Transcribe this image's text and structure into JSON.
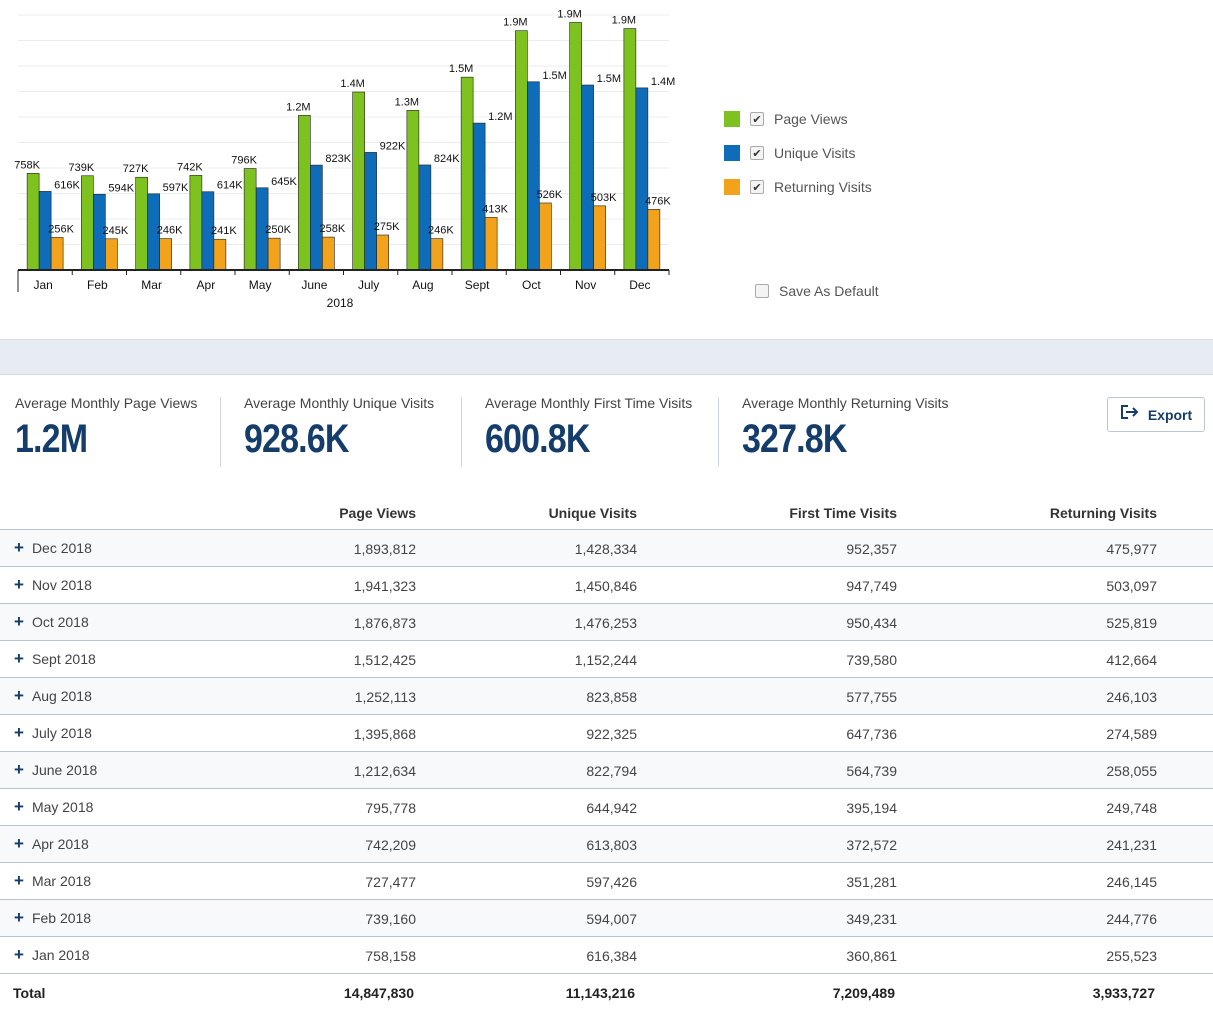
{
  "chart_data": {
    "type": "bar",
    "categories": [
      "Jan",
      "Feb",
      "Mar",
      "Apr",
      "May",
      "June",
      "July",
      "Aug",
      "Sept",
      "Oct",
      "Nov",
      "Dec"
    ],
    "xlabel": "2018",
    "series": [
      {
        "name": "Page Views",
        "color": "#7dc21e",
        "values": [
          758158,
          739160,
          727477,
          742209,
          795778,
          1212634,
          1395868,
          1252113,
          1512425,
          1876873,
          1941323,
          1893812
        ],
        "labels": [
          "758K",
          "739K",
          "727K",
          "742K",
          "796K",
          "1.2M",
          "1.4M",
          "1.3M",
          "1.5M",
          "1.9M",
          "1.9M",
          "1.9M"
        ]
      },
      {
        "name": "Unique Visits",
        "color": "#0f6cb8",
        "values": [
          616384,
          594007,
          597426,
          613803,
          644942,
          822794,
          922325,
          823858,
          1152244,
          1476253,
          1450846,
          1428334
        ],
        "labels": [
          "616K",
          "594K",
          "597K",
          "614K",
          "645K",
          "823K",
          "922K",
          "824K",
          "1.2M",
          "1.5M",
          "1.5M",
          "1.4M"
        ]
      },
      {
        "name": "Returning Visits",
        "color": "#f2a31b",
        "values": [
          255523,
          244776,
          246145,
          241231,
          249748,
          258055,
          274589,
          246103,
          412664,
          525819,
          503097,
          475977
        ],
        "labels": [
          "256K",
          "245K",
          "246K",
          "241K",
          "250K",
          "258K",
          "275K",
          "246K",
          "413K",
          "526K",
          "503K",
          "476K"
        ]
      }
    ],
    "ylim": [
      0,
      2000000
    ],
    "grid": true,
    "legend_position": "right"
  },
  "legend": {
    "items": [
      {
        "label": "Page Views",
        "color": "#7dc21e",
        "checked": "✔"
      },
      {
        "label": "Unique Visits",
        "color": "#0f6cb8",
        "checked": "✔"
      },
      {
        "label": "Returning Visits",
        "color": "#f2a31b",
        "checked": "✔"
      }
    ],
    "save_default": "Save As Default"
  },
  "stats": [
    {
      "label": "Average Monthly Page Views",
      "value": "1.2M"
    },
    {
      "label": "Average Monthly Unique Visits",
      "value": "928.6K"
    },
    {
      "label": "Average Monthly First Time Visits",
      "value": "600.8K"
    },
    {
      "label": "Average Monthly Returning Visits",
      "value": "327.8K"
    }
  ],
  "export_label": "Export",
  "table": {
    "headers": [
      "Page Views",
      "Unique Visits",
      "First Time Visits",
      "Returning Visits"
    ],
    "rows": [
      {
        "label": "Dec 2018",
        "cells": [
          "1,893,812",
          "1,428,334",
          "952,357",
          "475,977"
        ]
      },
      {
        "label": "Nov 2018",
        "cells": [
          "1,941,323",
          "1,450,846",
          "947,749",
          "503,097"
        ]
      },
      {
        "label": "Oct 2018",
        "cells": [
          "1,876,873",
          "1,476,253",
          "950,434",
          "525,819"
        ]
      },
      {
        "label": "Sept 2018",
        "cells": [
          "1,512,425",
          "1,152,244",
          "739,580",
          "412,664"
        ]
      },
      {
        "label": "Aug 2018",
        "cells": [
          "1,252,113",
          "823,858",
          "577,755",
          "246,103"
        ]
      },
      {
        "label": "July 2018",
        "cells": [
          "1,395,868",
          "922,325",
          "647,736",
          "274,589"
        ]
      },
      {
        "label": "June 2018",
        "cells": [
          "1,212,634",
          "822,794",
          "564,739",
          "258,055"
        ]
      },
      {
        "label": "May 2018",
        "cells": [
          "795,778",
          "644,942",
          "395,194",
          "249,748"
        ]
      },
      {
        "label": "Apr 2018",
        "cells": [
          "742,209",
          "613,803",
          "372,572",
          "241,231"
        ]
      },
      {
        "label": "Mar 2018",
        "cells": [
          "727,477",
          "597,426",
          "351,281",
          "246,145"
        ]
      },
      {
        "label": "Feb 2018",
        "cells": [
          "739,160",
          "594,007",
          "349,231",
          "244,776"
        ]
      },
      {
        "label": "Jan 2018",
        "cells": [
          "758,158",
          "616,384",
          "360,861",
          "255,523"
        ]
      }
    ],
    "total_label": "Total",
    "totals": [
      "14,847,830",
      "11,143,216",
      "7,209,489",
      "3,933,727"
    ]
  }
}
